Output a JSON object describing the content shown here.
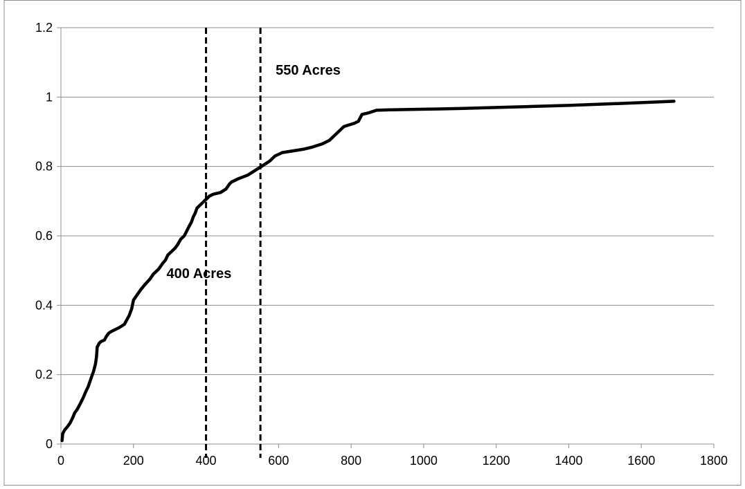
{
  "chart_data": {
    "type": "line",
    "title": "",
    "xlabel": "",
    "ylabel": "",
    "xlim": [
      0,
      1800
    ],
    "ylim": [
      0,
      1.2
    ],
    "x_ticks": [
      0,
      200,
      400,
      600,
      800,
      1000,
      1200,
      1400,
      1600,
      1800
    ],
    "y_ticks": [
      0,
      0.2,
      0.4,
      0.6,
      0.8,
      1,
      1.2
    ],
    "x_tick_labels": [
      "0",
      "200",
      "400",
      "600",
      "800",
      "1000",
      "1200",
      "1400",
      "1600",
      "1800"
    ],
    "y_tick_labels": [
      "0",
      "0.2",
      "0.4",
      "0.6",
      "0.8",
      "1",
      "1.2"
    ],
    "grid": "horizontal",
    "legend": "none",
    "colors": {
      "line": "#000000",
      "grid": "#8c8c8c",
      "axis": "#8c8c8c",
      "frame": "#8c8c8c"
    },
    "series": [
      {
        "x": [
          3,
          5,
          10,
          18,
          25,
          32,
          38,
          45,
          50,
          55,
          62,
          68,
          75,
          80,
          85,
          90,
          95,
          98,
          100,
          103,
          105,
          110,
          120,
          125,
          132,
          140,
          160,
          175,
          180,
          188,
          195,
          200,
          210,
          220,
          232,
          245,
          255,
          270,
          280,
          288,
          295,
          305,
          315,
          322,
          330,
          340,
          345,
          352,
          360,
          365,
          370,
          375,
          385,
          395,
          400,
          405,
          410,
          420,
          440,
          455,
          465,
          470,
          490,
          515,
          530,
          545,
          560,
          575,
          590,
          610,
          640,
          670,
          690,
          705,
          720,
          740,
          750,
          760,
          780,
          810,
          820,
          830,
          850,
          870,
          900,
          1000,
          1100,
          1200,
          1300,
          1400,
          1500,
          1600,
          1690
        ],
        "y": [
          0.01,
          0.03,
          0.04,
          0.05,
          0.06,
          0.075,
          0.09,
          0.1,
          0.11,
          0.12,
          0.135,
          0.15,
          0.165,
          0.18,
          0.195,
          0.21,
          0.23,
          0.25,
          0.28,
          0.285,
          0.29,
          0.295,
          0.3,
          0.31,
          0.32,
          0.325,
          0.335,
          0.345,
          0.355,
          0.37,
          0.39,
          0.415,
          0.43,
          0.445,
          0.46,
          0.475,
          0.49,
          0.505,
          0.52,
          0.53,
          0.545,
          0.555,
          0.565,
          0.575,
          0.59,
          0.6,
          0.61,
          0.625,
          0.64,
          0.655,
          0.665,
          0.68,
          0.69,
          0.7,
          0.705,
          0.71,
          0.715,
          0.72,
          0.725,
          0.735,
          0.75,
          0.755,
          0.765,
          0.775,
          0.785,
          0.795,
          0.805,
          0.815,
          0.83,
          0.84,
          0.845,
          0.85,
          0.855,
          0.86,
          0.865,
          0.875,
          0.885,
          0.895,
          0.915,
          0.925,
          0.93,
          0.95,
          0.955,
          0.962,
          0.963,
          0.965,
          0.967,
          0.97,
          0.973,
          0.976,
          0.98,
          0.984,
          0.988
        ]
      }
    ],
    "reference_lines": [
      {
        "x": 400,
        "label": "400 Acres"
      },
      {
        "x": 550,
        "label": "550 Acres"
      }
    ]
  }
}
